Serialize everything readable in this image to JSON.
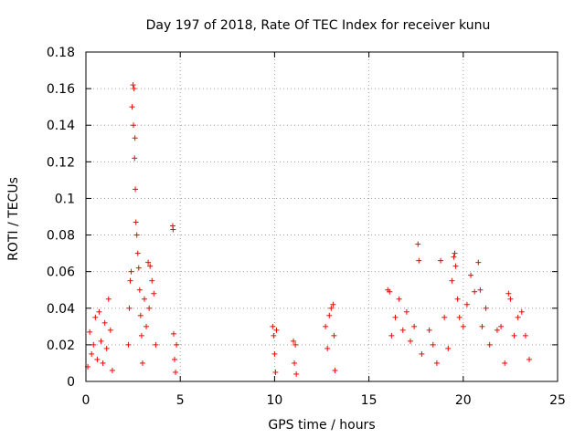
{
  "chart_data": {
    "type": "scatter",
    "title": "Day 197 of 2018, Rate Of TEC Index for receiver kunu",
    "xlabel": "GPS time / hours",
    "ylabel": "ROTI / TECUs",
    "xlim": [
      0,
      25
    ],
    "ylim": [
      0,
      0.18
    ],
    "xticks": [
      "0",
      "5",
      "10",
      "15",
      "20",
      "25"
    ],
    "yticks": [
      "0",
      "0.02",
      "0.04",
      "0.06",
      "0.08",
      "0.1",
      "0.12",
      "0.14",
      "0.16",
      "0.18"
    ],
    "grid": true,
    "marker": "+",
    "color": "#ff0000",
    "series": [
      {
        "values": [
          [
            0.1,
            0.008
          ],
          [
            0.2,
            0.027
          ],
          [
            0.3,
            0.015
          ],
          [
            0.4,
            0.02
          ],
          [
            0.5,
            0.035
          ],
          [
            0.6,
            0.012
          ],
          [
            0.7,
            0.038
          ],
          [
            0.8,
            0.022
          ],
          [
            0.9,
            0.01
          ],
          [
            1.0,
            0.032
          ],
          [
            1.1,
            0.018
          ],
          [
            1.2,
            0.045
          ],
          [
            1.3,
            0.028
          ],
          [
            1.4,
            0.006
          ],
          [
            2.25,
            0.02
          ],
          [
            2.3,
            0.04
          ],
          [
            2.35,
            0.055
          ],
          [
            2.4,
            0.06
          ],
          [
            2.45,
            0.15
          ],
          [
            2.5,
            0.162
          ],
          [
            2.52,
            0.14
          ],
          [
            2.55,
            0.16
          ],
          [
            2.58,
            0.122
          ],
          [
            2.6,
            0.133
          ],
          [
            2.62,
            0.105
          ],
          [
            2.65,
            0.087
          ],
          [
            2.7,
            0.08
          ],
          [
            2.75,
            0.07
          ],
          [
            2.8,
            0.062
          ],
          [
            2.85,
            0.05
          ],
          [
            2.9,
            0.036
          ],
          [
            2.95,
            0.025
          ],
          [
            3.0,
            0.01
          ],
          [
            3.1,
            0.045
          ],
          [
            3.2,
            0.03
          ],
          [
            3.3,
            0.065
          ],
          [
            3.35,
            0.04
          ],
          [
            3.4,
            0.063
          ],
          [
            3.5,
            0.055
          ],
          [
            3.6,
            0.048
          ],
          [
            3.7,
            0.02
          ],
          [
            4.6,
            0.085
          ],
          [
            4.62,
            0.083
          ],
          [
            4.65,
            0.026
          ],
          [
            4.7,
            0.012
          ],
          [
            4.75,
            0.005
          ],
          [
            4.8,
            0.02
          ],
          [
            9.9,
            0.03
          ],
          [
            9.95,
            0.025
          ],
          [
            10.0,
            0.015
          ],
          [
            10.05,
            0.005
          ],
          [
            10.1,
            0.028
          ],
          [
            11.0,
            0.022
          ],
          [
            11.05,
            0.01
          ],
          [
            11.1,
            0.02
          ],
          [
            11.15,
            0.004
          ],
          [
            12.7,
            0.03
          ],
          [
            12.8,
            0.018
          ],
          [
            12.9,
            0.036
          ],
          [
            13.0,
            0.04
          ],
          [
            13.1,
            0.042
          ],
          [
            13.15,
            0.025
          ],
          [
            13.2,
            0.006
          ],
          [
            16.0,
            0.05
          ],
          [
            16.1,
            0.049
          ],
          [
            16.2,
            0.025
          ],
          [
            16.4,
            0.035
          ],
          [
            16.6,
            0.045
          ],
          [
            16.8,
            0.028
          ],
          [
            17.0,
            0.038
          ],
          [
            17.2,
            0.022
          ],
          [
            17.4,
            0.03
          ],
          [
            17.6,
            0.075
          ],
          [
            17.65,
            0.066
          ],
          [
            17.8,
            0.015
          ],
          [
            18.2,
            0.028
          ],
          [
            18.4,
            0.02
          ],
          [
            18.6,
            0.01
          ],
          [
            18.8,
            0.066
          ],
          [
            19.0,
            0.035
          ],
          [
            19.2,
            0.018
          ],
          [
            19.4,
            0.055
          ],
          [
            19.5,
            0.068
          ],
          [
            19.55,
            0.07
          ],
          [
            19.6,
            0.063
          ],
          [
            19.7,
            0.045
          ],
          [
            19.8,
            0.035
          ],
          [
            20.0,
            0.03
          ],
          [
            20.2,
            0.042
          ],
          [
            20.4,
            0.058
          ],
          [
            20.6,
            0.049
          ],
          [
            20.8,
            0.065
          ],
          [
            20.9,
            0.05
          ],
          [
            21.0,
            0.03
          ],
          [
            21.2,
            0.04
          ],
          [
            21.4,
            0.02
          ],
          [
            21.8,
            0.028
          ],
          [
            22.0,
            0.03
          ],
          [
            22.2,
            0.01
          ],
          [
            22.4,
            0.048
          ],
          [
            22.5,
            0.045
          ],
          [
            22.7,
            0.025
          ],
          [
            22.9,
            0.035
          ],
          [
            23.1,
            0.038
          ],
          [
            23.3,
            0.025
          ],
          [
            23.5,
            0.012
          ]
        ]
      }
    ]
  }
}
